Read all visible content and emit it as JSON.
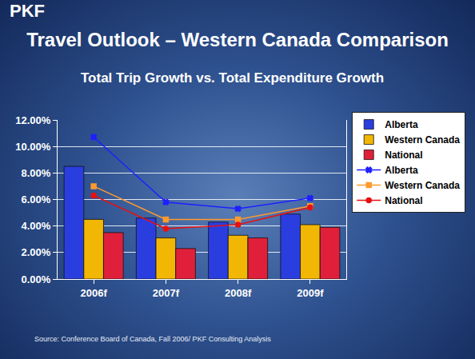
{
  "chart_data": {
    "type": "bar",
    "title": "Travel Outlook – Western Canada Comparison",
    "subtitle": "Total Trip Growth vs. Total Expenditure Growth",
    "annotations": [
      "PKF",
      "Source: Conference Board of Canada, Fall 2006/ PKF Consulting Analysis"
    ],
    "categories": [
      "2006f",
      "2007f",
      "2008f",
      "2009f"
    ],
    "series": [
      {
        "name": "Alberta",
        "type": "bar",
        "color": "#2a3ee0",
        "values": [
          8.5,
          4.6,
          4.3,
          4.9
        ]
      },
      {
        "name": "Western Canada",
        "type": "bar",
        "color": "#f2b705",
        "values": [
          4.5,
          3.1,
          3.3,
          4.1
        ]
      },
      {
        "name": "National",
        "type": "bar",
        "color": "#e0203a",
        "values": [
          3.5,
          2.3,
          3.1,
          3.9
        ]
      },
      {
        "name": "Alberta",
        "type": "line",
        "color": "#1f1fff",
        "marker": "x",
        "values": [
          10.7,
          5.8,
          5.3,
          6.1
        ]
      },
      {
        "name": "Western Canada",
        "type": "line",
        "color": "#ff9a2e",
        "marker": "square",
        "values": [
          7.0,
          4.5,
          4.5,
          5.5
        ]
      },
      {
        "name": "National",
        "type": "line",
        "color": "#e81010",
        "marker": "circle",
        "values": [
          6.3,
          3.8,
          4.1,
          5.4
        ]
      }
    ],
    "ylim": [
      0,
      12
    ],
    "yticks": [
      {
        "value": 0,
        "label": "0.00%"
      },
      {
        "value": 2,
        "label": "2.00%"
      },
      {
        "value": 4,
        "label": "4.00%"
      },
      {
        "value": 6,
        "label": "6.00%"
      },
      {
        "value": 8,
        "label": "8.00%"
      },
      {
        "value": 10,
        "label": "10.00%"
      },
      {
        "value": 12,
        "label": "12.00%"
      }
    ],
    "grid": true,
    "legend": "right"
  }
}
